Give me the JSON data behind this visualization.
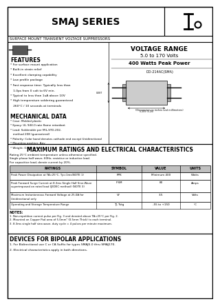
{
  "title": "SMAJ SERIES",
  "subtitle": "SURFACE MOUNT TRANSIENT VOLTAGE SUPPRESSORS",
  "voltage_range_title": "VOLTAGE RANGE",
  "voltage_range": "5.0 to 170 Volts",
  "power": "400 Watts Peak Power",
  "features_title": "FEATURES",
  "features": [
    "* For surface mount application",
    "* Built-in strain relief",
    "* Excellent clamping capability",
    "* Low profile package",
    "* Fast response time: Typically less than",
    "   1.0ps from 0 volt to 6V min.",
    "* Typical to less than 1uA above 10V",
    "* High temperature soldering guaranteed",
    "   260°C / 10 seconds at terminals"
  ],
  "mech_title": "MECHANICAL DATA",
  "mech": [
    "* Case: Molded plastic",
    "* Epoxy: UL 94V-0 rate flame retardant",
    "* Lead: Solderable per MIL-STD-202,",
    "   method 208 (guaranteed)",
    "* Polarity: Color band denotes cathode end except Unidirectional",
    "* Mounting position: Any",
    "* Weight: 0.063 grams"
  ],
  "max_ratings_title": "MAXIMUM RATINGS AND ELECTRICAL CHARACTERISTICS",
  "max_ratings_note": "Rating 25°C ambient temperature unless otherwise specified.\nSingle phase half wave, 60Hz, resistive or inductive load.\nFor capacitive load, derate current by 20%.",
  "table_headers": [
    "RATINGS",
    "SYMBOL",
    "VALUE",
    "UNITS"
  ],
  "table_rows": [
    [
      "Peak Power Dissipation at TA=25°C, Tp=1ms(NOTE 1)",
      "PPK",
      "Minimum 400",
      "Watts"
    ],
    [
      "Peak Forward Surge Current at 8.3ms Single Half Sine-Wave\nsuperimposed on rated load (JEDEC method) (NOTE 3)",
      "IFSM",
      "80",
      "Amps"
    ],
    [
      "Maximum Instantaneous Forward Voltage at 25.0A for\nUnidirectional only",
      "VF",
      "3.5",
      "Volts"
    ],
    [
      "Operating and Storage Temperature Range",
      "TJ, Tstg",
      "-55 to +150",
      "°C"
    ]
  ],
  "notes_title": "NOTES:",
  "notes": [
    "1. Non-repetition current pulse per Fig. 3 and derated above TA=25°C per Fig. 2.",
    "2. Mounted on Copper Pad area of 5.0mm² (0.5mm Thick) to each terminal.",
    "3. 8.3ms single half sine-wave, duty cycle = 4 pulses per minute maximum."
  ],
  "bipolar_title": "DEVICES FOR BIPOLAR APPLICATIONS",
  "bipolar": [
    "1. For Bidirectional use C or CA Suffix for types SMAJ5.0 thru SMAJ170.",
    "2. Electrical characteristics apply in both directions."
  ],
  "diagram_label": "DO-214AC(SMA)",
  "bg_color": "#ffffff"
}
